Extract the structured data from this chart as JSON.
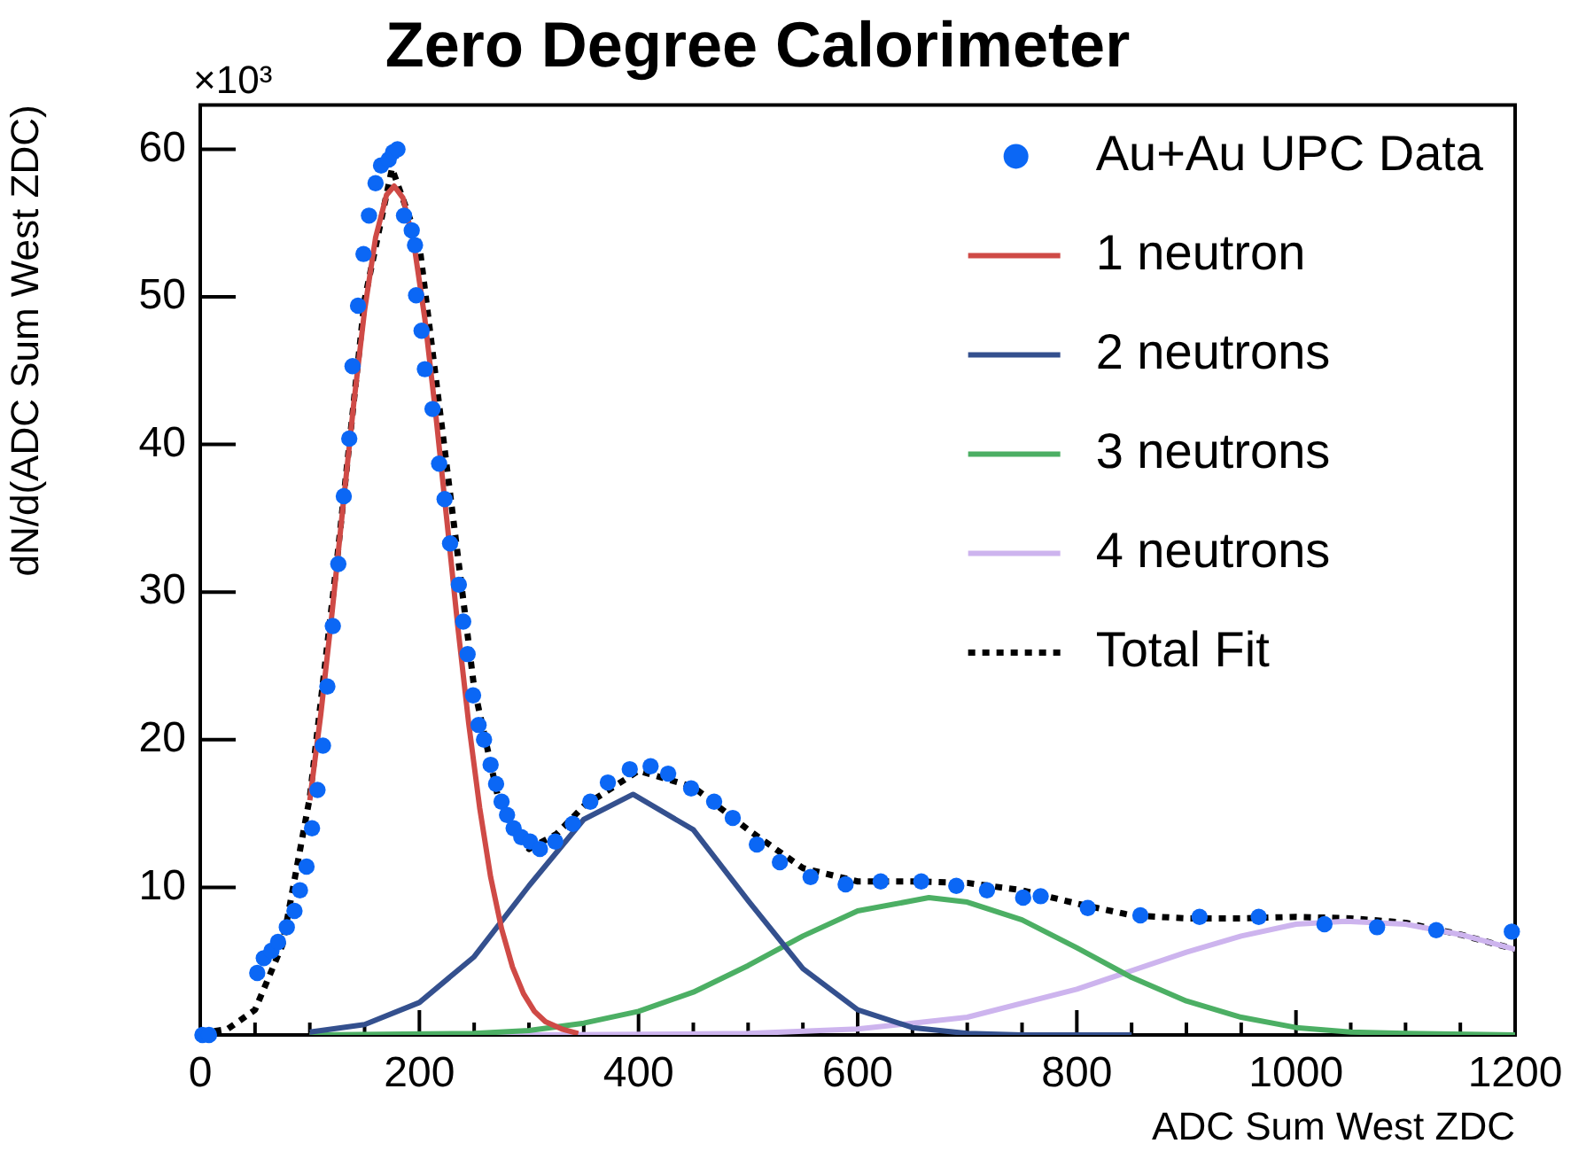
{
  "chart_data": {
    "type": "line",
    "title": "Zero Degree Calorimeter",
    "xlabel": "ADC Sum West ZDC",
    "ylabel": "dN/d(ADC Sum West ZDC)",
    "annotations": [
      "×10³"
    ],
    "xlim": [
      0,
      1200
    ],
    "ylim": [
      0,
      63
    ],
    "xticks": [
      0,
      {
        "value": 50,
        "label": null
      },
      {
        "value": 100,
        "label": null
      },
      {
        "value": 150,
        "label": null
      },
      200,
      {
        "value": 250,
        "label": null
      },
      {
        "value": 300,
        "label": null
      },
      {
        "value": 350,
        "label": null
      },
      400,
      {
        "value": 450,
        "label": null
      },
      {
        "value": 500,
        "label": null
      },
      {
        "value": 550,
        "label": null
      },
      600,
      {
        "value": 650,
        "label": null
      },
      {
        "value": 700,
        "label": null
      },
      {
        "value": 750,
        "label": null
      },
      800,
      {
        "value": 850,
        "label": null
      },
      {
        "value": 900,
        "label": null
      },
      {
        "value": 950,
        "label": null
      },
      1000,
      {
        "value": 1050,
        "label": null
      },
      {
        "value": 1100,
        "label": null
      },
      {
        "value": 1150,
        "label": null
      },
      1200
    ],
    "yticks": [
      10,
      20,
      30,
      40,
      50,
      60
    ],
    "grid": false,
    "legend": "top right",
    "series": [
      {
        "name": "Au+Au UPC Data",
        "type": "scatter",
        "marker": "circle",
        "color": "#0b67f5",
        "x": [
          2,
          8,
          52,
          58,
          65,
          71,
          79,
          86,
          91,
          97,
          102,
          107,
          112,
          116,
          121,
          126,
          131,
          136,
          139,
          144,
          149,
          154,
          160,
          165,
          172,
          176,
          180,
          186,
          193,
          196,
          197,
          202,
          205,
          212,
          218,
          223,
          228,
          236,
          240,
          244,
          249,
          254,
          259,
          265,
          270,
          275,
          280,
          286,
          293,
          301,
          310,
          324,
          340,
          356,
          372,
          392,
          411,
          427,
          448,
          469,
          486,
          508,
          529,
          557,
          589,
          621,
          658,
          690,
          718,
          751,
          767,
          810,
          858,
          912,
          966,
          1026,
          1074,
          1128,
          1197
        ],
        "values": [
          0,
          0,
          4.2,
          5.2,
          5.7,
          6.3,
          7.3,
          8.4,
          9.8,
          11.4,
          14,
          16.6,
          19.6,
          23.6,
          27.7,
          31.9,
          36.5,
          40.4,
          45.3,
          49.4,
          52.9,
          55.5,
          57.7,
          58.9,
          59.3,
          59.8,
          60,
          55.5,
          54.5,
          53.5,
          50.1,
          47.7,
          45.1,
          42.4,
          38.7,
          36.3,
          33.3,
          30.5,
          28,
          25.8,
          23,
          21,
          20,
          18.3,
          17,
          15.8,
          14.9,
          14,
          13.4,
          13.1,
          12.6,
          13.1,
          14.3,
          15.8,
          17.1,
          18,
          18.2,
          17.7,
          16.7,
          15.8,
          14.7,
          12.9,
          11.7,
          10.7,
          10.2,
          10.4,
          10.4,
          10.1,
          9.8,
          9.3,
          9.4,
          8.6,
          8.1,
          8,
          8,
          7.5,
          7.3,
          7.1,
          7
        ]
      },
      {
        "name": "1 neutron",
        "type": "line",
        "marker": "none",
        "line_style": "solid",
        "color": "#cf4a46",
        "x": [
          100,
          110,
          120,
          130,
          140,
          150,
          160,
          170,
          177,
          185,
          195,
          205,
          215,
          225,
          235,
          245,
          255,
          265,
          275,
          285,
          295,
          305,
          315,
          330,
          345
        ],
        "values": [
          15.9,
          21.7,
          28.4,
          35.6,
          42.7,
          49.1,
          54,
          56.9,
          57.5,
          56.7,
          53.6,
          48.5,
          42,
          34.9,
          27.7,
          21.1,
          15.4,
          10.7,
          7.2,
          4.6,
          2.8,
          1.6,
          0.9,
          0.4,
          0.1
        ]
      },
      {
        "name": "2 neutrons",
        "type": "line",
        "marker": "none",
        "line_style": "solid",
        "color": "#34508e",
        "x": [
          100,
          150,
          200,
          250,
          300,
          350,
          395,
          450,
          500,
          550,
          600,
          650,
          700,
          750,
          850
        ],
        "values": [
          0.2,
          0.7,
          2.2,
          5.3,
          10.1,
          14.6,
          16.3,
          13.9,
          9.1,
          4.5,
          1.7,
          0.5,
          0.1,
          0,
          0
        ]
      },
      {
        "name": "3 neutrons",
        "type": "line",
        "marker": "none",
        "line_style": "solid",
        "color": "#4caf64",
        "x": [
          100,
          250,
          300,
          350,
          400,
          450,
          500,
          550,
          600,
          665,
          700,
          750,
          800,
          850,
          900,
          950,
          1000,
          1050,
          1100,
          1200
        ],
        "values": [
          0,
          0.1,
          0.3,
          0.8,
          1.6,
          2.9,
          4.7,
          6.7,
          8.4,
          9.3,
          9,
          7.8,
          5.9,
          3.9,
          2.3,
          1.2,
          0.5,
          0.2,
          0.1,
          0
        ]
      },
      {
        "name": "4 neutrons",
        "type": "line",
        "marker": "none",
        "line_style": "solid",
        "color": "#cdb4ee",
        "x": [
          100,
          300,
          500,
          600,
          700,
          800,
          900,
          950,
          1000,
          1045,
          1100,
          1150,
          1200
        ],
        "values": [
          0,
          0,
          0.1,
          0.4,
          1.2,
          3.1,
          5.6,
          6.7,
          7.5,
          7.7,
          7.5,
          6.8,
          5.8
        ]
      },
      {
        "name": "Total Fit",
        "type": "line",
        "marker": "none",
        "line_style": "dotted",
        "color": "#000000",
        "x": [
          0,
          25,
          50,
          75,
          100,
          125,
          150,
          175,
          200,
          225,
          250,
          275,
          300,
          325,
          350,
          400,
          450,
          500,
          550,
          600,
          650,
          700,
          750,
          800,
          850,
          900,
          950,
          1000,
          1050,
          1100,
          1150,
          1200
        ],
        "values": [
          0.1,
          0.4,
          1.7,
          6.1,
          16.1,
          32.3,
          49.8,
          58.7,
          53.5,
          38.5,
          23.5,
          15,
          12.6,
          13.6,
          15.5,
          17.9,
          16.8,
          13.9,
          11.3,
          10.4,
          10.4,
          10.3,
          9.8,
          8.9,
          8.1,
          7.9,
          7.9,
          8,
          7.9,
          7.6,
          6.8,
          5.8
        ]
      }
    ]
  }
}
